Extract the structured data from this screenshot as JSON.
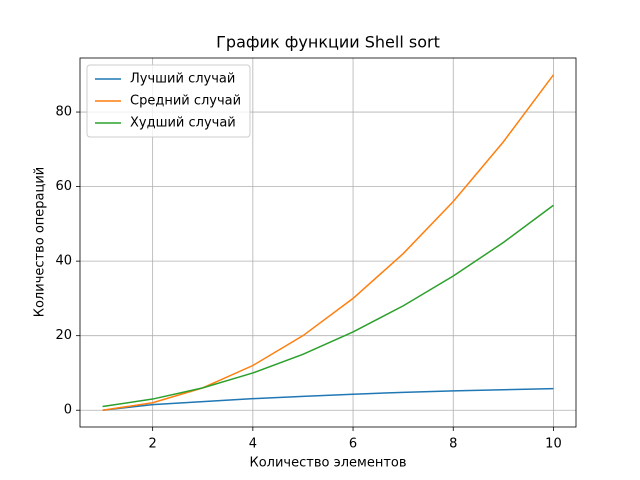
{
  "chart_data": {
    "type": "line",
    "title": "График функции Shell sort",
    "x_label": "Количество элементов",
    "y_label": "Количество операций",
    "x": [
      1,
      2,
      3,
      4,
      5,
      6,
      7,
      8,
      9,
      10
    ],
    "series": [
      {
        "name": "Лучший случай",
        "color": "#1f77b4",
        "values": [
          0,
          1.5,
          2.3,
          3.1,
          3.7,
          4.3,
          4.8,
          5.2,
          5.5,
          5.8
        ]
      },
      {
        "name": "Средний случай",
        "color": "#ff7f0e",
        "values": [
          0,
          2,
          6,
          12,
          20,
          30,
          42,
          56,
          72,
          90
        ]
      },
      {
        "name": "Худший случай",
        "color": "#2ca02c",
        "values": [
          1,
          3,
          6,
          10,
          15,
          21,
          28,
          36,
          45,
          55
        ]
      }
    ],
    "xlim": [
      0.55,
      10.45
    ],
    "ylim": [
      -4.5,
      94.5
    ],
    "xticks": [
      2,
      4,
      6,
      8,
      10
    ],
    "yticks": [
      0,
      20,
      40,
      60,
      80
    ],
    "grid": true,
    "legend": "upper-left"
  }
}
